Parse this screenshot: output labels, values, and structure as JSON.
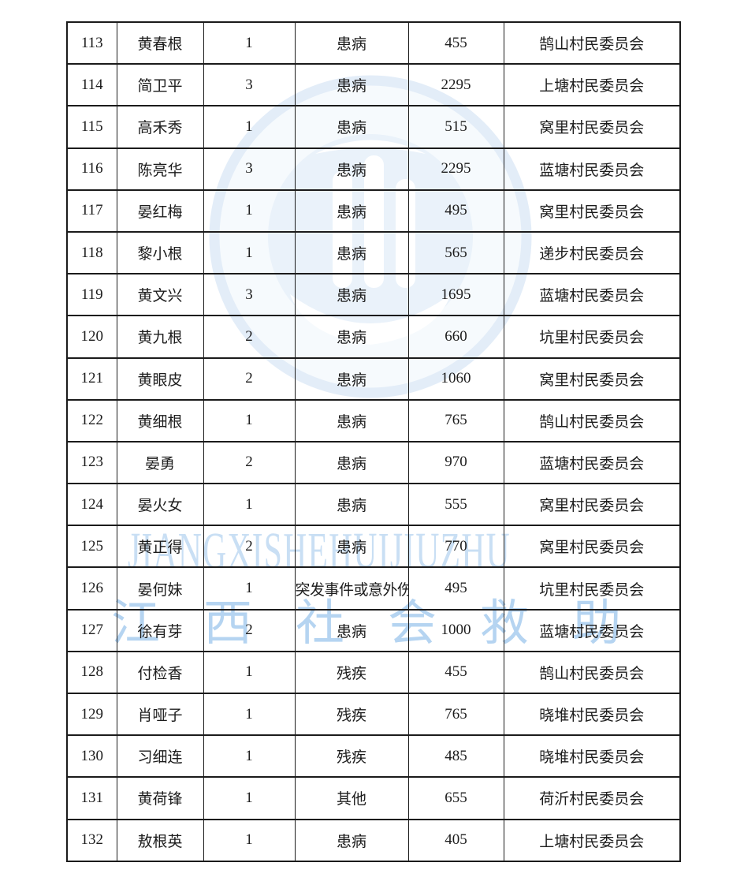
{
  "page": {
    "background": "#ffffff"
  },
  "watermark": {
    "latin_text": "JIANGXISHEHUIJIUZHU",
    "cn_text": "江西社会救助",
    "latin_color": "#c9dff4",
    "cn_color": "#b5d4f1",
    "seal_ring_color": "#e3edf8",
    "seal_fill_color": "#f6fafd",
    "seal_inner_color": "#eaf2fa"
  },
  "table": {
    "rows": [
      {
        "no": "113",
        "name": "黄春根",
        "count": "1",
        "reason": "患病",
        "amount": "455",
        "committee": "鹄山村民委员会"
      },
      {
        "no": "114",
        "name": "简卫平",
        "count": "3",
        "reason": "患病",
        "amount": "2295",
        "committee": "上塘村民委员会"
      },
      {
        "no": "115",
        "name": "高禾秀",
        "count": "1",
        "reason": "患病",
        "amount": "515",
        "committee": "窝里村民委员会"
      },
      {
        "no": "116",
        "name": "陈亮华",
        "count": "3",
        "reason": "患病",
        "amount": "2295",
        "committee": "蓝塘村民委员会"
      },
      {
        "no": "117",
        "name": "晏红梅",
        "count": "1",
        "reason": "患病",
        "amount": "495",
        "committee": "窝里村民委员会"
      },
      {
        "no": "118",
        "name": "黎小根",
        "count": "1",
        "reason": "患病",
        "amount": "565",
        "committee": "递步村民委员会"
      },
      {
        "no": "119",
        "name": "黄文兴",
        "count": "3",
        "reason": "患病",
        "amount": "1695",
        "committee": "蓝塘村民委员会"
      },
      {
        "no": "120",
        "name": "黄九根",
        "count": "2",
        "reason": "患病",
        "amount": "660",
        "committee": "坑里村民委员会"
      },
      {
        "no": "121",
        "name": "黄眼皮",
        "count": "2",
        "reason": "患病",
        "amount": "1060",
        "committee": "窝里村民委员会"
      },
      {
        "no": "122",
        "name": "黄细根",
        "count": "1",
        "reason": "患病",
        "amount": "765",
        "committee": "鹄山村民委员会"
      },
      {
        "no": "123",
        "name": "晏勇",
        "count": "2",
        "reason": "患病",
        "amount": "970",
        "committee": "蓝塘村民委员会"
      },
      {
        "no": "124",
        "name": "晏火女",
        "count": "1",
        "reason": "患病",
        "amount": "555",
        "committee": "窝里村民委员会"
      },
      {
        "no": "125",
        "name": "黄正得",
        "count": "2",
        "reason": "患病",
        "amount": "770",
        "committee": "窝里村民委员会"
      },
      {
        "no": "126",
        "name": "晏何妹",
        "count": "1",
        "reason": "突发事件或意外伤",
        "amount": "495",
        "committee": "坑里村民委员会"
      },
      {
        "no": "127",
        "name": "徐有芽",
        "count": "2",
        "reason": "患病",
        "amount": "1000",
        "committee": "蓝塘村民委员会"
      },
      {
        "no": "128",
        "name": "付检香",
        "count": "1",
        "reason": "残疾",
        "amount": "455",
        "committee": "鹄山村民委员会"
      },
      {
        "no": "129",
        "name": "肖哑子",
        "count": "1",
        "reason": "残疾",
        "amount": "765",
        "committee": "晓堆村民委员会"
      },
      {
        "no": "130",
        "name": "习细连",
        "count": "1",
        "reason": "残疾",
        "amount": "485",
        "committee": "晓堆村民委员会"
      },
      {
        "no": "131",
        "name": "黄荷锋",
        "count": "1",
        "reason": "其他",
        "amount": "655",
        "committee": "荷沂村民委员会"
      },
      {
        "no": "132",
        "name": "敖根英",
        "count": "1",
        "reason": "患病",
        "amount": "405",
        "committee": "上塘村民委员会"
      }
    ]
  }
}
